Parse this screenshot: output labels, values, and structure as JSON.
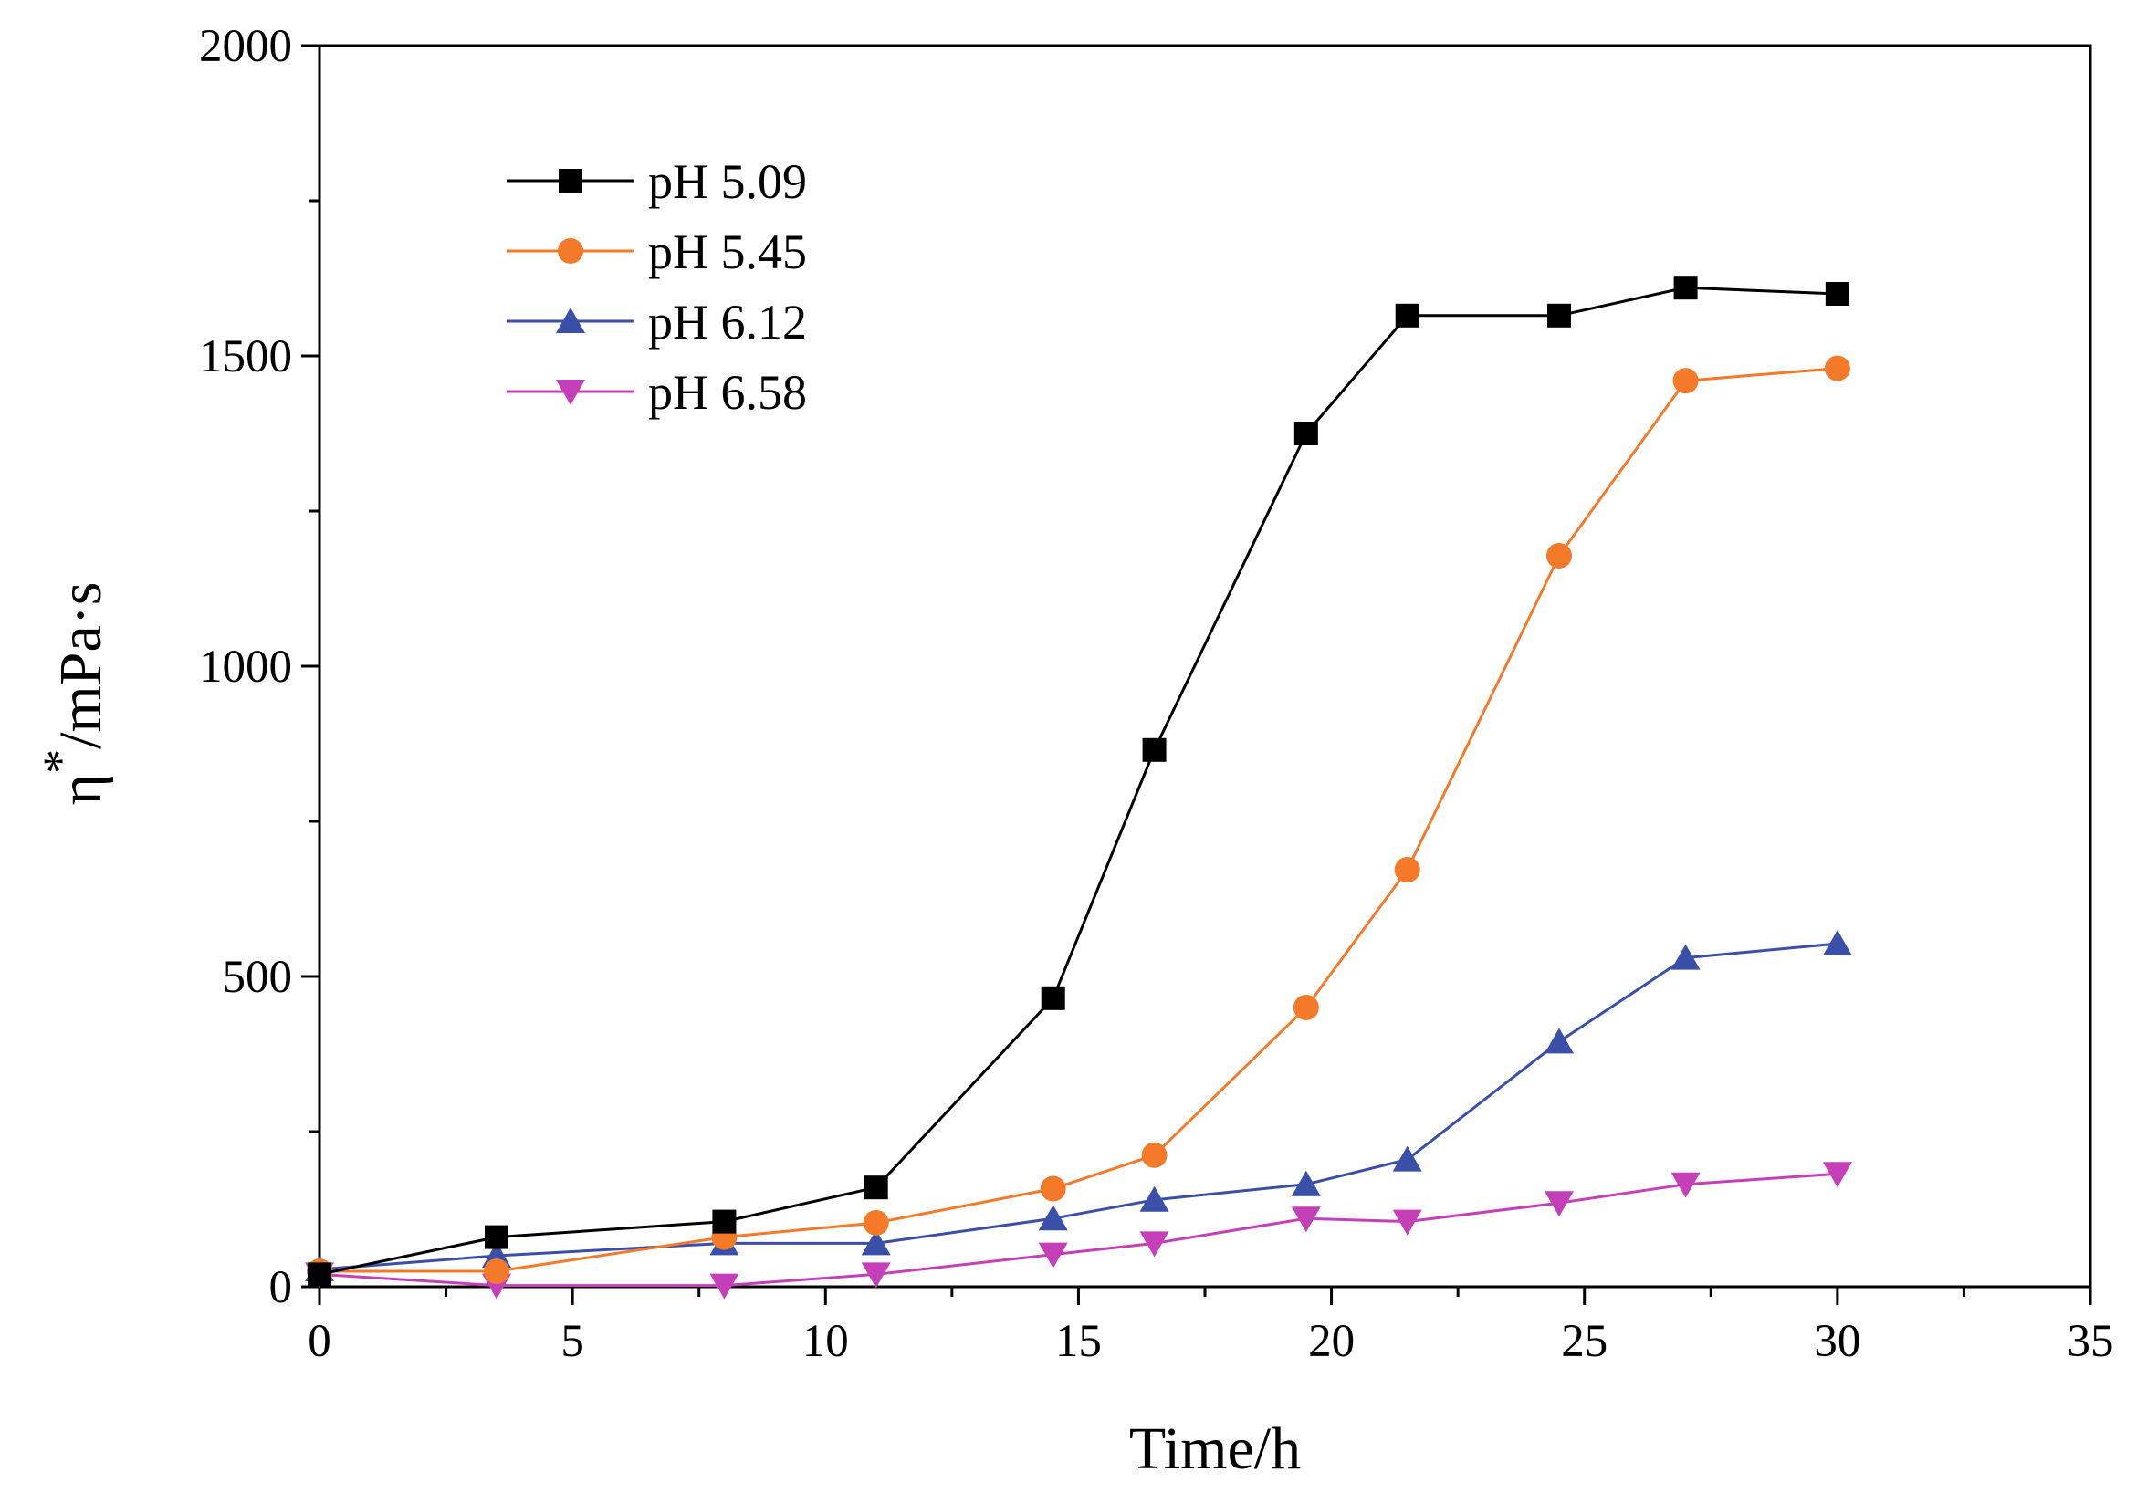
{
  "chart_data": {
    "type": "line",
    "title": "",
    "xlabel": "Time/h",
    "ylabel": {
      "symbol": "η",
      "superscript": "*",
      "unit": "/mPa·s"
    },
    "xlim": [
      0,
      35
    ],
    "ylim": [
      0,
      2000
    ],
    "xticks": [
      0,
      5,
      10,
      15,
      20,
      25,
      30,
      35
    ],
    "yticks": [
      0,
      500,
      1000,
      1500,
      2000
    ],
    "xtick_labels": [
      "0",
      "5",
      "10",
      "15",
      "20",
      "25",
      "30",
      "35"
    ],
    "ytick_labels": [
      "0",
      "500",
      "1000",
      "1500",
      "2000"
    ],
    "grid": false,
    "legend_position": "top-left",
    "series": [
      {
        "name": "pH 5.09",
        "color": "#000000",
        "marker": "square",
        "x": [
          0,
          3.5,
          8,
          11,
          14.5,
          16.5,
          19.5,
          21.5,
          24.5,
          27,
          30
        ],
        "y": [
          20,
          80,
          105,
          160,
          465,
          865,
          1375,
          1565,
          1565,
          1610,
          1600
        ]
      },
      {
        "name": "pH 5.45",
        "color": "#f47a2a",
        "marker": "circle",
        "x": [
          0,
          3.5,
          8,
          11,
          14.5,
          16.5,
          19.5,
          21.5,
          24.5,
          27,
          30
        ],
        "y": [
          25,
          25,
          80,
          103,
          158,
          212,
          450,
          672,
          1178,
          1460,
          1480
        ]
      },
      {
        "name": "pH 6.12",
        "color": "#3a4fa8",
        "marker": "triangle-up",
        "x": [
          0,
          3.5,
          8,
          11,
          14.5,
          16.5,
          19.5,
          21.5,
          24.5,
          27,
          30
        ],
        "y": [
          28,
          50,
          70,
          70,
          110,
          140,
          165,
          205,
          395,
          530,
          553
        ]
      },
      {
        "name": "pH 6.58",
        "color": "#c540b8",
        "marker": "triangle-down",
        "x": [
          0,
          3.5,
          8,
          11,
          14.5,
          16.5,
          19.5,
          21.5,
          24.5,
          27,
          30
        ],
        "y": [
          20,
          2,
          2,
          20,
          52,
          70,
          110,
          105,
          135,
          165,
          182
        ]
      }
    ]
  }
}
